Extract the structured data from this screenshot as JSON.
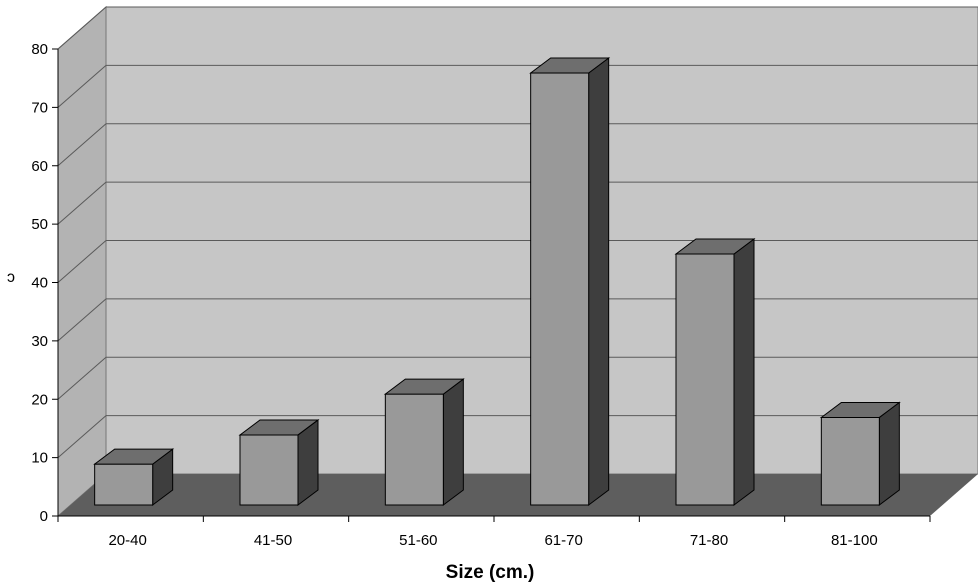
{
  "chart_data": {
    "type": "bar",
    "categories": [
      "20-40",
      "41-50",
      "51-60",
      "61-70",
      "71-80",
      "81-100"
    ],
    "values": [
      7,
      12,
      19,
      74,
      43,
      15
    ],
    "xlabel": "Size (cm.)",
    "ylabel": "ɔ",
    "ylim": [
      0,
      80
    ],
    "yticks": [
      0,
      10,
      20,
      30,
      40,
      50,
      60,
      70,
      80
    ],
    "grid": true,
    "legend": "none",
    "colors": {
      "back_wall": "#c6c6c6",
      "side_wall": "#b3b3b3",
      "floor": "#5e5e5e",
      "bar_front": "#999999",
      "bar_top": "#6e6e6e",
      "bar_side": "#3e3e3e",
      "gridline": "#5a5a5a"
    }
  }
}
